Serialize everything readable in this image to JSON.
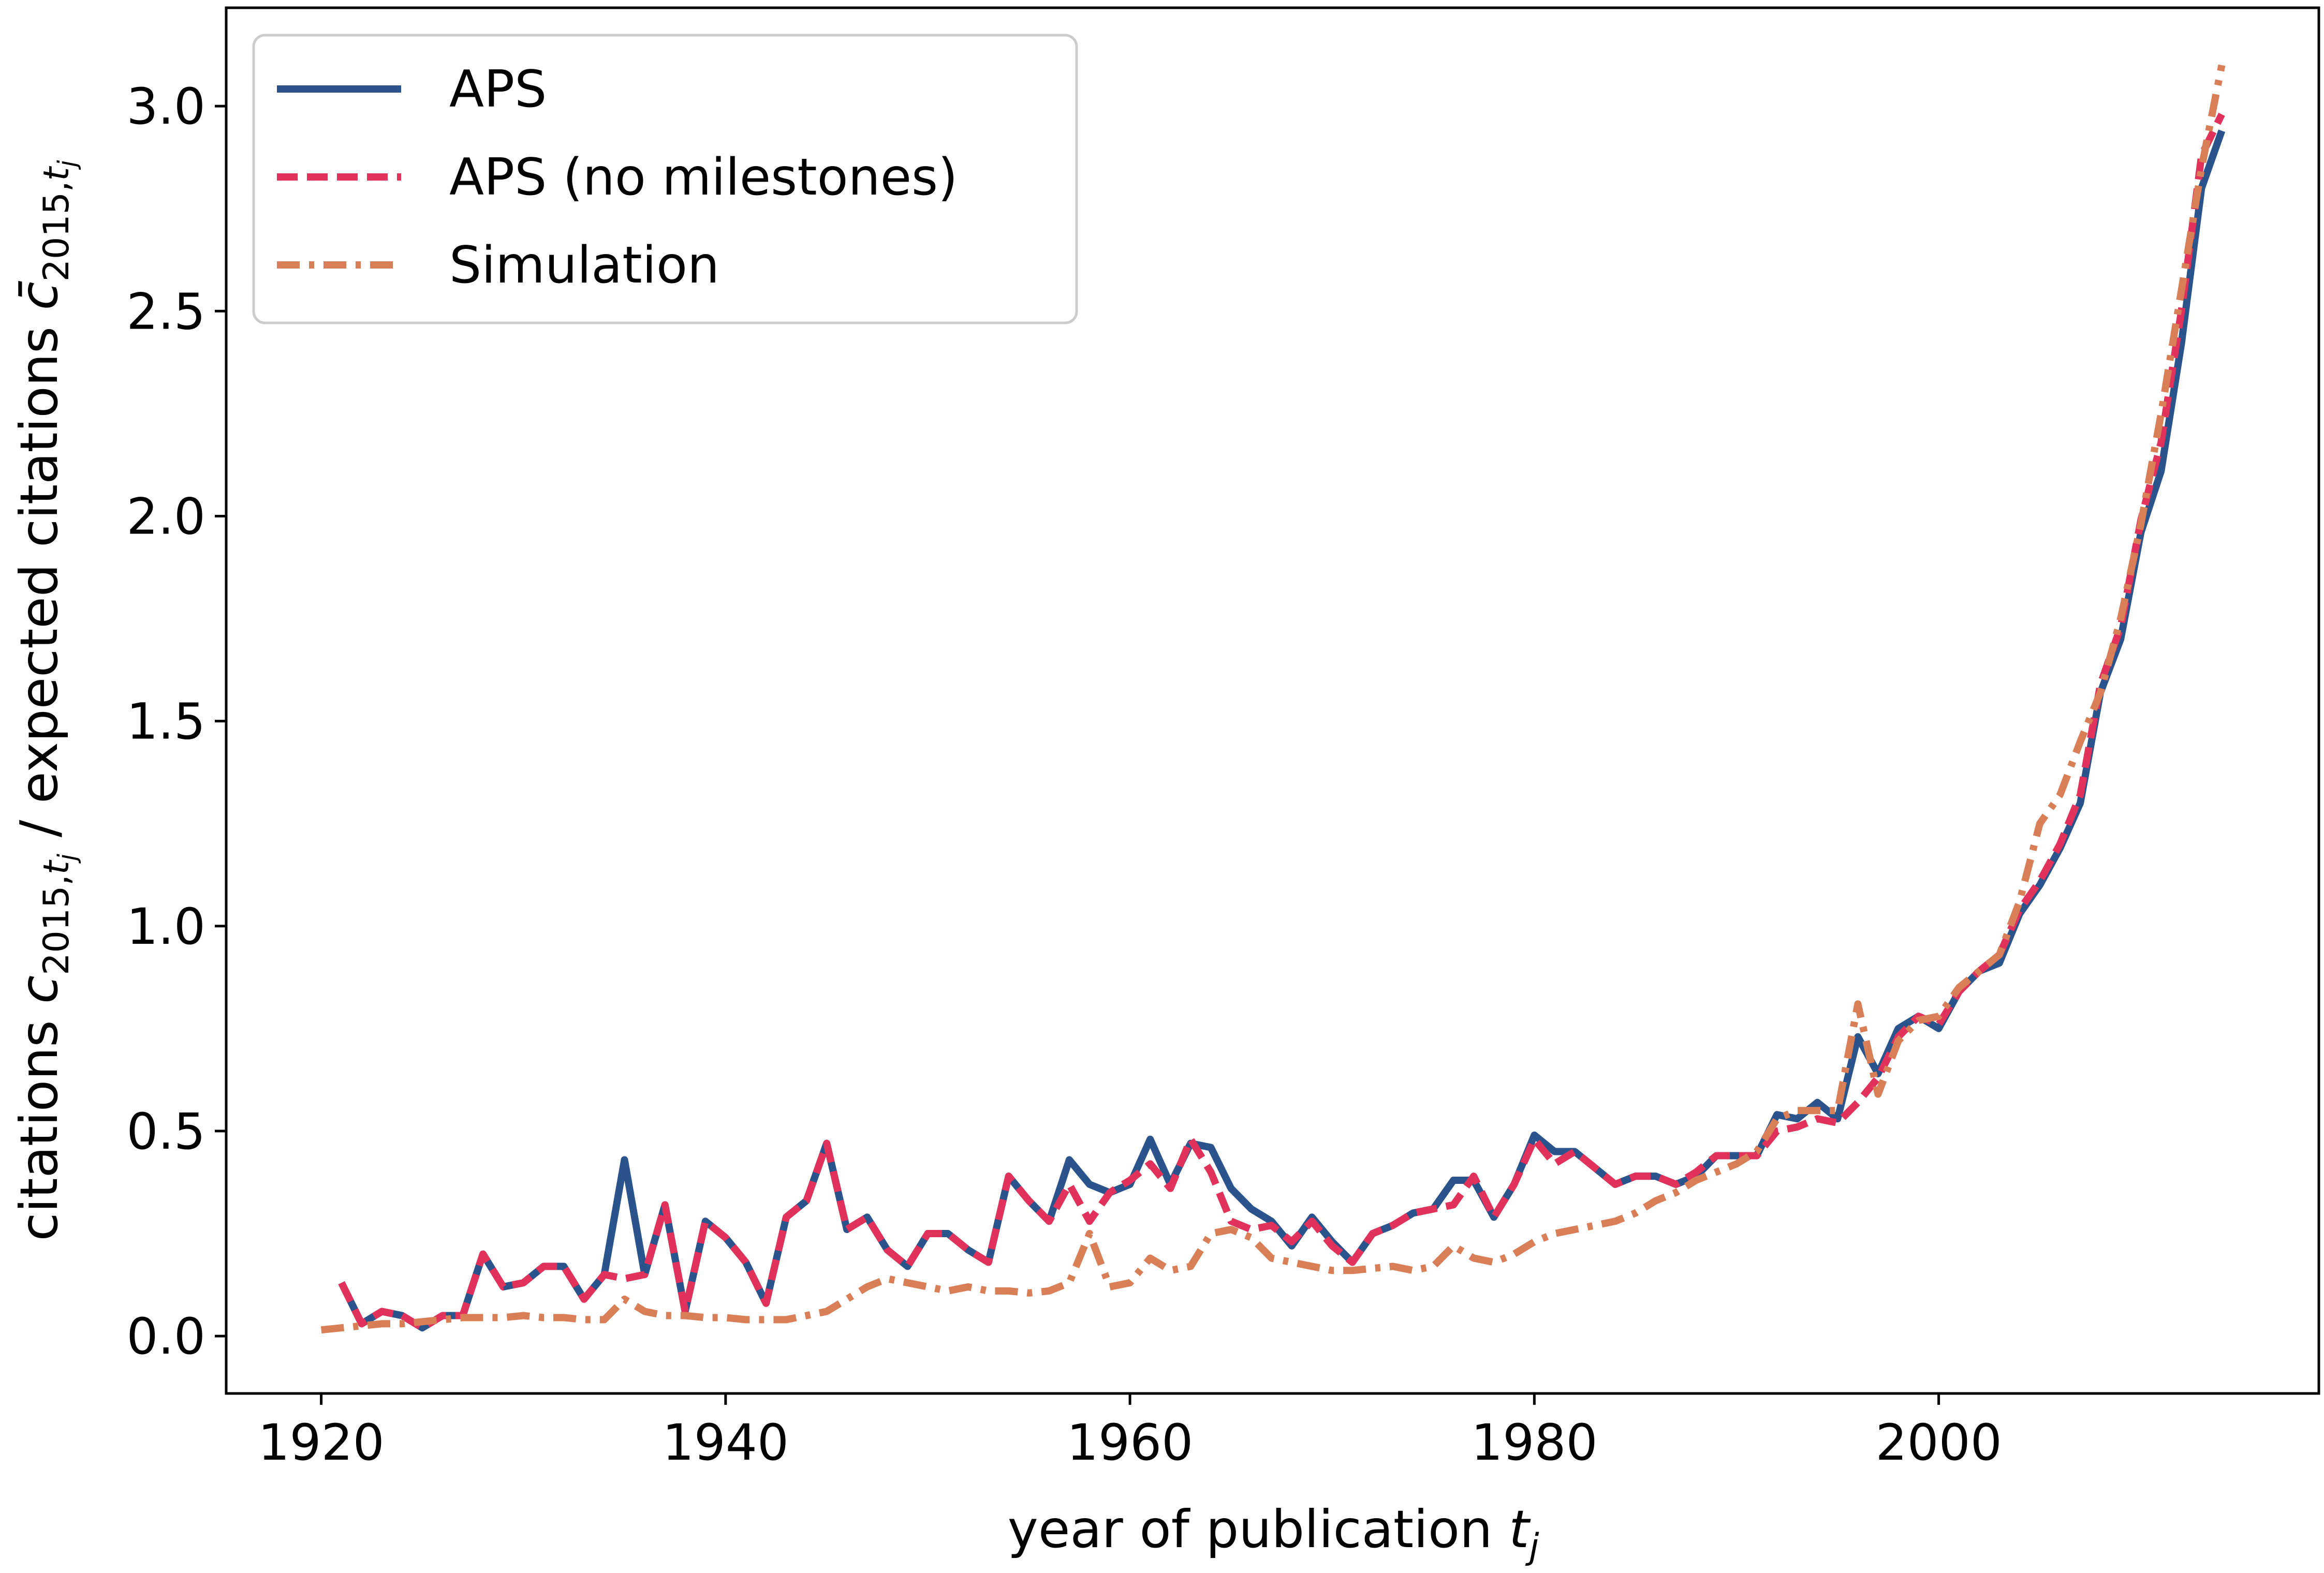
{
  "chart_data": {
    "type": "line",
    "xlabel": {
      "prefix": "year of publication ",
      "var": "t",
      "sub": "j"
    },
    "ylabel": {
      "part1": "citations ",
      "var1": "c",
      "sub1_pre": "2015,",
      "sub1_var": "t",
      "sub1_sub": "j",
      "part2": " / expected citations ",
      "var2": "c̄",
      "sub2_pre": "2015,",
      "sub2_var": "t",
      "sub2_sub": "j"
    },
    "xlim": [
      1915.3,
      2018.8
    ],
    "ylim": [
      -0.14,
      3.24
    ],
    "xticks": [
      1920,
      1940,
      1960,
      1980,
      2000
    ],
    "yticks": [
      0.0,
      0.5,
      1.0,
      1.5,
      2.0,
      2.5,
      3.0
    ],
    "grid": false,
    "legend_position": "upper-left",
    "series": [
      {
        "name": "APS",
        "color": "#2b538c",
        "dash": "solid",
        "x": [
          1921,
          1922,
          1923,
          1924,
          1925,
          1926,
          1927,
          1928,
          1929,
          1930,
          1931,
          1932,
          1933,
          1934,
          1935,
          1936,
          1937,
          1938,
          1939,
          1940,
          1941,
          1942,
          1943,
          1944,
          1945,
          1946,
          1947,
          1948,
          1949,
          1950,
          1951,
          1952,
          1953,
          1954,
          1955,
          1956,
          1957,
          1958,
          1959,
          1960,
          1961,
          1962,
          1963,
          1964,
          1965,
          1966,
          1967,
          1968,
          1969,
          1970,
          1971,
          1972,
          1973,
          1974,
          1975,
          1976,
          1977,
          1978,
          1979,
          1980,
          1981,
          1982,
          1983,
          1984,
          1985,
          1986,
          1987,
          1988,
          1989,
          1990,
          1991,
          1992,
          1993,
          1994,
          1995,
          1996,
          1997,
          1998,
          1999,
          2000,
          2001,
          2002,
          2003,
          2004,
          2005,
          2006,
          2007,
          2008,
          2009,
          2010,
          2011,
          2012,
          2013,
          2014
        ],
        "y": [
          0.13,
          0.03,
          0.06,
          0.05,
          0.02,
          0.05,
          0.05,
          0.2,
          0.12,
          0.13,
          0.17,
          0.17,
          0.09,
          0.15,
          0.43,
          0.15,
          0.32,
          0.06,
          0.28,
          0.24,
          0.18,
          0.08,
          0.29,
          0.33,
          0.47,
          0.26,
          0.29,
          0.21,
          0.17,
          0.25,
          0.25,
          0.21,
          0.18,
          0.39,
          0.33,
          0.28,
          0.43,
          0.37,
          0.35,
          0.37,
          0.48,
          0.37,
          0.47,
          0.46,
          0.36,
          0.31,
          0.28,
          0.22,
          0.29,
          0.23,
          0.18,
          0.25,
          0.27,
          0.3,
          0.31,
          0.38,
          0.38,
          0.29,
          0.37,
          0.49,
          0.45,
          0.45,
          0.41,
          0.37,
          0.39,
          0.39,
          0.37,
          0.39,
          0.44,
          0.44,
          0.44,
          0.54,
          0.53,
          0.57,
          0.53,
          0.73,
          0.64,
          0.75,
          0.78,
          0.75,
          0.84,
          0.89,
          0.91,
          1.03,
          1.1,
          1.19,
          1.3,
          1.57,
          1.7,
          1.96,
          2.11,
          2.42,
          2.8,
          2.94
        ]
      },
      {
        "name": "APS (no milestones)",
        "color": "#e0325a",
        "dash": "dashed",
        "x": [
          1921,
          1922,
          1923,
          1924,
          1925,
          1926,
          1927,
          1928,
          1929,
          1930,
          1931,
          1932,
          1933,
          1934,
          1935,
          1936,
          1937,
          1938,
          1939,
          1940,
          1941,
          1942,
          1943,
          1944,
          1945,
          1946,
          1947,
          1948,
          1949,
          1950,
          1951,
          1952,
          1953,
          1954,
          1955,
          1956,
          1957,
          1958,
          1959,
          1960,
          1961,
          1962,
          1963,
          1964,
          1965,
          1966,
          1967,
          1968,
          1969,
          1970,
          1971,
          1972,
          1973,
          1974,
          1975,
          1976,
          1977,
          1978,
          1979,
          1980,
          1981,
          1982,
          1983,
          1984,
          1985,
          1986,
          1987,
          1988,
          1989,
          1990,
          1991,
          1992,
          1993,
          1994,
          1995,
          1996,
          1997,
          1998,
          1999,
          2000,
          2001,
          2002,
          2003,
          2004,
          2005,
          2006,
          2007,
          2008,
          2009,
          2010,
          2011,
          2012,
          2013,
          2014
        ],
        "y": [
          0.13,
          0.03,
          0.06,
          0.05,
          0.02,
          0.05,
          0.05,
          0.2,
          0.12,
          0.13,
          0.17,
          0.17,
          0.09,
          0.15,
          0.14,
          0.15,
          0.32,
          0.06,
          0.28,
          0.24,
          0.18,
          0.08,
          0.29,
          0.33,
          0.47,
          0.26,
          0.29,
          0.21,
          0.17,
          0.25,
          0.25,
          0.21,
          0.18,
          0.39,
          0.33,
          0.28,
          0.37,
          0.28,
          0.35,
          0.38,
          0.42,
          0.36,
          0.48,
          0.4,
          0.28,
          0.26,
          0.27,
          0.23,
          0.28,
          0.22,
          0.18,
          0.25,
          0.27,
          0.3,
          0.31,
          0.32,
          0.39,
          0.29,
          0.37,
          0.48,
          0.42,
          0.45,
          0.41,
          0.37,
          0.39,
          0.39,
          0.37,
          0.4,
          0.44,
          0.44,
          0.44,
          0.5,
          0.51,
          0.53,
          0.52,
          0.57,
          0.63,
          0.73,
          0.78,
          0.76,
          0.84,
          0.89,
          0.93,
          1.04,
          1.11,
          1.2,
          1.32,
          1.59,
          1.73,
          1.99,
          2.18,
          2.5,
          2.88,
          2.98
        ]
      },
      {
        "name": "Simulation",
        "color": "#d97f58",
        "dash": "dashdot",
        "x": [
          1920,
          1921,
          1922,
          1923,
          1924,
          1925,
          1926,
          1927,
          1928,
          1929,
          1930,
          1931,
          1932,
          1933,
          1934,
          1935,
          1936,
          1937,
          1938,
          1939,
          1940,
          1941,
          1942,
          1943,
          1944,
          1945,
          1946,
          1947,
          1948,
          1949,
          1950,
          1951,
          1952,
          1953,
          1954,
          1955,
          1956,
          1957,
          1958,
          1959,
          1960,
          1961,
          1962,
          1963,
          1964,
          1965,
          1966,
          1967,
          1968,
          1969,
          1970,
          1971,
          1972,
          1973,
          1974,
          1975,
          1976,
          1977,
          1978,
          1979,
          1980,
          1981,
          1982,
          1983,
          1984,
          1985,
          1986,
          1987,
          1988,
          1989,
          1990,
          1991,
          1992,
          1993,
          1994,
          1995,
          1996,
          1997,
          1998,
          1999,
          2000,
          2001,
          2002,
          2003,
          2004,
          2005,
          2006,
          2007,
          2008,
          2009,
          2010,
          2011,
          2012,
          2013,
          2014
        ],
        "y": [
          0.015,
          0.02,
          0.025,
          0.03,
          0.03,
          0.035,
          0.04,
          0.045,
          0.045,
          0.045,
          0.05,
          0.045,
          0.045,
          0.04,
          0.04,
          0.09,
          0.06,
          0.05,
          0.05,
          0.045,
          0.045,
          0.04,
          0.04,
          0.04,
          0.05,
          0.06,
          0.09,
          0.12,
          0.14,
          0.13,
          0.12,
          0.11,
          0.12,
          0.11,
          0.11,
          0.105,
          0.11,
          0.13,
          0.25,
          0.12,
          0.13,
          0.19,
          0.16,
          0.17,
          0.25,
          0.26,
          0.24,
          0.19,
          0.18,
          0.17,
          0.16,
          0.16,
          0.165,
          0.17,
          0.16,
          0.17,
          0.22,
          0.19,
          0.18,
          0.2,
          0.23,
          0.25,
          0.26,
          0.27,
          0.28,
          0.3,
          0.33,
          0.35,
          0.38,
          0.4,
          0.42,
          0.45,
          0.53,
          0.55,
          0.55,
          0.55,
          0.81,
          0.59,
          0.72,
          0.77,
          0.78,
          0.85,
          0.89,
          0.93,
          1.06,
          1.25,
          1.32,
          1.45,
          1.57,
          1.75,
          1.98,
          2.25,
          2.55,
          2.85,
          3.1
        ]
      }
    ]
  }
}
